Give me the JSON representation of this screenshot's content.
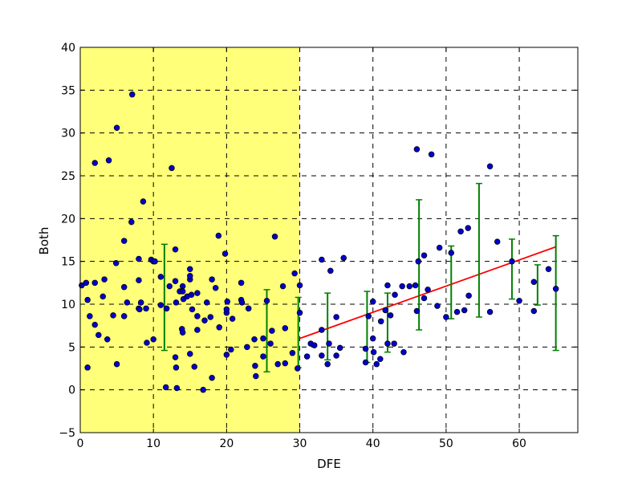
{
  "chart_data": {
    "type": "scatter",
    "title": "",
    "xlabel": "DFE",
    "ylabel": "Both",
    "xlim": [
      0,
      68
    ],
    "ylim": [
      -5,
      40
    ],
    "x_ticks": [
      "0",
      "10",
      "20",
      "30",
      "40",
      "50",
      "60"
    ],
    "y_ticks": [
      "−5",
      "0",
      "5",
      "10",
      "15",
      "20",
      "25",
      "30",
      "35",
      "40"
    ],
    "grid": true,
    "grid_style": "dashed",
    "highlight_region": {
      "x_from": 0,
      "x_to": 30,
      "color": "#ffff7a"
    },
    "colors": {
      "points": "#0000cc",
      "error_bars": "#008000",
      "trend_line": "#ff0000"
    },
    "series": [
      {
        "points": [
          [
            0.2,
            12.2
          ],
          [
            0.8,
            12.5
          ],
          [
            1.0,
            10.5
          ],
          [
            1.0,
            2.6
          ],
          [
            1.3,
            8.6
          ],
          [
            2.0,
            12.5
          ],
          [
            2.0,
            26.5
          ],
          [
            2.0,
            7.6
          ],
          [
            2.5,
            6.4
          ],
          [
            3.1,
            10.9
          ],
          [
            3.3,
            12.9
          ],
          [
            3.7,
            5.9
          ],
          [
            3.9,
            26.8
          ],
          [
            4.5,
            8.7
          ],
          [
            4.9,
            14.8
          ],
          [
            5.0,
            3.0
          ],
          [
            5.0,
            30.6
          ],
          [
            6.0,
            12.0
          ],
          [
            6.0,
            8.6
          ],
          [
            6.0,
            17.4
          ],
          [
            6.4,
            10.2
          ],
          [
            7.0,
            19.6
          ],
          [
            7.1,
            34.5
          ],
          [
            8.0,
            9.5
          ],
          [
            8.0,
            15.3
          ],
          [
            8.0,
            12.8
          ],
          [
            8.1,
            9.4
          ],
          [
            8.3,
            10.2
          ],
          [
            8.6,
            22.0
          ],
          [
            9.0,
            9.5
          ],
          [
            9.1,
            5.5
          ],
          [
            9.7,
            15.2
          ],
          [
            10.0,
            15.0
          ],
          [
            10.0,
            5.9
          ],
          [
            10.2,
            15.0
          ],
          [
            11.0,
            13.2
          ],
          [
            11.0,
            9.9
          ],
          [
            11.7,
            0.3
          ],
          [
            11.8,
            9.5
          ],
          [
            12.2,
            12.1
          ],
          [
            12.5,
            25.9
          ],
          [
            13.0,
            16.4
          ],
          [
            13.0,
            12.7
          ],
          [
            13.0,
            3.8
          ],
          [
            13.1,
            2.6
          ],
          [
            13.1,
            10.2
          ],
          [
            13.2,
            0.2
          ],
          [
            13.6,
            11.5
          ],
          [
            13.9,
            7.1
          ],
          [
            14.0,
            6.7
          ],
          [
            14.0,
            12.1
          ],
          [
            14.0,
            11.5
          ],
          [
            14.1,
            10.6
          ],
          [
            14.6,
            10.9
          ],
          [
            15.0,
            12.9
          ],
          [
            15.0,
            14.1
          ],
          [
            15.0,
            13.3
          ],
          [
            15.0,
            4.2
          ],
          [
            15.2,
            11.1
          ],
          [
            15.3,
            9.4
          ],
          [
            15.6,
            2.7
          ],
          [
            16.0,
            7.0
          ],
          [
            16.0,
            11.3
          ],
          [
            16.0,
            8.6
          ],
          [
            16.8,
            0.0
          ],
          [
            17.0,
            8.1
          ],
          [
            17.3,
            10.2
          ],
          [
            17.8,
            8.5
          ],
          [
            18.0,
            12.9
          ],
          [
            18.0,
            1.4
          ],
          [
            18.5,
            11.9
          ],
          [
            18.9,
            18.0
          ],
          [
            19.0,
            7.3
          ],
          [
            19.8,
            15.9
          ],
          [
            20.0,
            4.1
          ],
          [
            20.0,
            9.0
          ],
          [
            20.0,
            9.4
          ],
          [
            20.1,
            10.3
          ],
          [
            20.6,
            4.7
          ],
          [
            20.8,
            8.3
          ],
          [
            22.0,
            12.5
          ],
          [
            22.0,
            10.5
          ],
          [
            22.1,
            10.2
          ],
          [
            22.8,
            5.0
          ],
          [
            23.0,
            9.5
          ],
          [
            23.8,
            5.9
          ],
          [
            23.9,
            2.8
          ],
          [
            24.0,
            1.6
          ],
          [
            25.0,
            6.0
          ],
          [
            25.0,
            3.9
          ],
          [
            25.5,
            10.4
          ],
          [
            26.0,
            5.4
          ],
          [
            26.2,
            6.9
          ],
          [
            26.6,
            17.9
          ],
          [
            27.0,
            3.0
          ],
          [
            27.7,
            12.1
          ],
          [
            28.0,
            7.2
          ],
          [
            28.0,
            3.1
          ],
          [
            29.0,
            4.3
          ],
          [
            29.3,
            13.6
          ],
          [
            29.7,
            2.5
          ],
          [
            30.0,
            12.2
          ],
          [
            30.0,
            9.0
          ],
          [
            31.0,
            3.9
          ],
          [
            31.5,
            5.4
          ],
          [
            32.0,
            5.2
          ],
          [
            33.0,
            4.0
          ],
          [
            33.0,
            15.2
          ],
          [
            33.0,
            7.0
          ],
          [
            33.8,
            3.0
          ],
          [
            34.0,
            5.4
          ],
          [
            34.2,
            13.9
          ],
          [
            35.0,
            8.5
          ],
          [
            35.0,
            4.0
          ],
          [
            35.5,
            4.9
          ],
          [
            36.0,
            15.4
          ],
          [
            39.0,
            3.2
          ],
          [
            39.0,
            4.8
          ],
          [
            39.4,
            8.6
          ],
          [
            40.0,
            10.3
          ],
          [
            40.0,
            6.0
          ],
          [
            40.1,
            4.4
          ],
          [
            40.5,
            3.0
          ],
          [
            41.0,
            3.6
          ],
          [
            41.1,
            8.0
          ],
          [
            41.7,
            9.3
          ],
          [
            42.0,
            12.2
          ],
          [
            42.0,
            5.4
          ],
          [
            42.4,
            8.7
          ],
          [
            42.9,
            5.4
          ],
          [
            43.0,
            11.1
          ],
          [
            44.0,
            12.1
          ],
          [
            44.2,
            4.4
          ],
          [
            45.0,
            12.1
          ],
          [
            45.8,
            12.2
          ],
          [
            46.0,
            28.1
          ],
          [
            46.0,
            9.2
          ],
          [
            46.2,
            15.0
          ],
          [
            47.0,
            15.7
          ],
          [
            47.0,
            10.7
          ],
          [
            47.5,
            11.7
          ],
          [
            48.0,
            27.5
          ],
          [
            48.8,
            9.8
          ],
          [
            49.1,
            16.6
          ],
          [
            50.0,
            8.5
          ],
          [
            50.7,
            16.0
          ],
          [
            51.5,
            9.1
          ],
          [
            52.0,
            18.5
          ],
          [
            52.5,
            9.3
          ],
          [
            53.0,
            18.9
          ],
          [
            53.1,
            11.0
          ],
          [
            56.0,
            26.1
          ],
          [
            56.0,
            9.1
          ],
          [
            57.0,
            17.3
          ],
          [
            59.0,
            15.0
          ],
          [
            60.0,
            10.4
          ],
          [
            62.0,
            12.6
          ],
          [
            62.0,
            9.2
          ],
          [
            64.0,
            14.1
          ],
          [
            65.0,
            11.8
          ]
        ]
      }
    ],
    "error_bars": [
      {
        "x": 11.5,
        "low": 4.6,
        "high": 17.0
      },
      {
        "x": 25.5,
        "low": 2.1,
        "high": 11.7
      },
      {
        "x": 29.8,
        "low": 2.6,
        "high": 10.8
      },
      {
        "x": 33.8,
        "low": 3.5,
        "high": 11.3
      },
      {
        "x": 39.2,
        "low": 3.2,
        "high": 11.5
      },
      {
        "x": 42.0,
        "low": 4.4,
        "high": 11.3
      },
      {
        "x": 46.3,
        "low": 7.0,
        "high": 22.2
      },
      {
        "x": 50.7,
        "low": 8.3,
        "high": 16.8
      },
      {
        "x": 54.5,
        "low": 8.5,
        "high": 24.1
      },
      {
        "x": 59.0,
        "low": 10.6,
        "high": 17.6
      },
      {
        "x": 62.5,
        "low": 9.9,
        "high": 14.6
      },
      {
        "x": 65.0,
        "low": 4.6,
        "high": 18.0
      }
    ],
    "trend_line": {
      "x": [
        30,
        65
      ],
      "y": [
        6.0,
        16.7
      ]
    }
  }
}
